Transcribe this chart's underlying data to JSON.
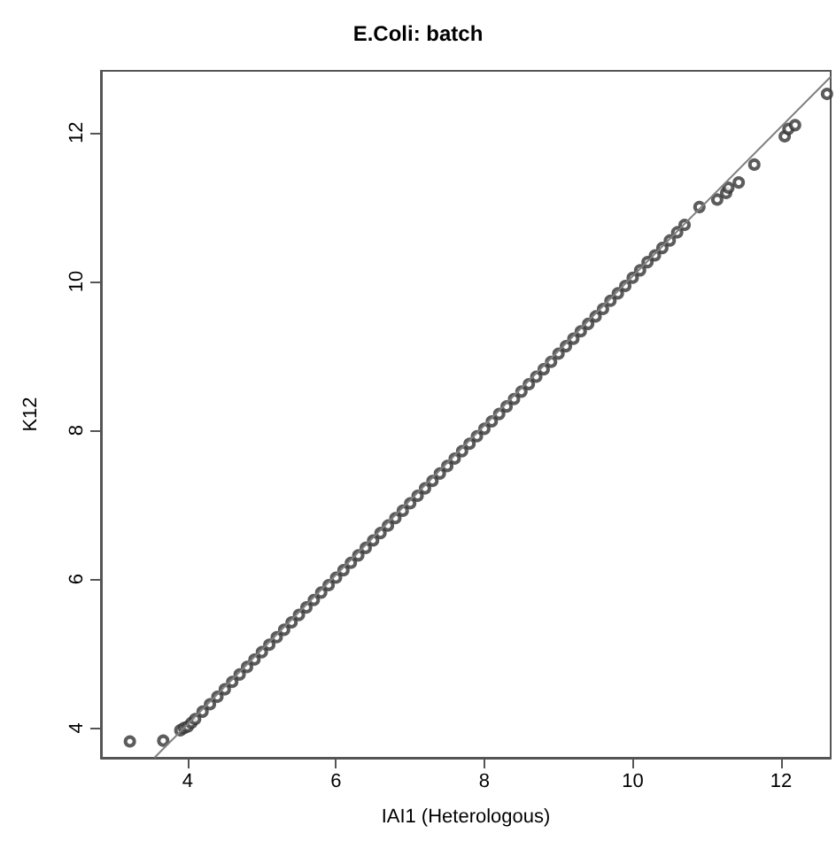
{
  "chart_data": {
    "type": "scatter",
    "title": "E.Coli: batch",
    "xlabel": "IAI1 (Heterologous)",
    "ylabel": "K12",
    "xlim": [
      2.83,
      12.67
    ],
    "ylim": [
      3.6,
      12.83
    ],
    "xticks": [
      4,
      6,
      8,
      10,
      12
    ],
    "yticks": [
      4,
      6,
      8,
      10,
      12
    ],
    "grid": false,
    "series": [
      {
        "marker": "circle",
        "color": "#333333",
        "x": [
          3.22,
          3.67,
          3.9,
          3.95,
          4.0,
          4.05,
          4.1,
          4.2,
          4.3,
          4.4,
          4.5,
          4.6,
          4.7,
          4.8,
          4.9,
          5.0,
          5.1,
          5.2,
          5.3,
          5.4,
          5.5,
          5.6,
          5.7,
          5.8,
          5.9,
          6.0,
          6.1,
          6.2,
          6.3,
          6.4,
          6.5,
          6.6,
          6.7,
          6.8,
          6.9,
          7.0,
          7.1,
          7.2,
          7.3,
          7.4,
          7.5,
          7.6,
          7.7,
          7.8,
          7.9,
          8.0,
          8.1,
          8.2,
          8.3,
          8.4,
          8.5,
          8.6,
          8.7,
          8.8,
          8.9,
          9.0,
          9.1,
          9.2,
          9.3,
          9.4,
          9.5,
          9.6,
          9.7,
          9.8,
          9.9,
          10.0,
          10.1,
          10.2,
          10.3,
          10.4,
          10.5,
          10.6,
          10.7,
          10.9,
          11.14,
          11.26,
          11.29,
          11.43,
          11.64,
          12.05,
          12.1,
          12.19,
          12.62
        ],
        "values": [
          3.82,
          3.83,
          3.97,
          4.0,
          4.02,
          4.07,
          4.12,
          4.22,
          4.32,
          4.42,
          4.52,
          4.62,
          4.72,
          4.82,
          4.92,
          5.02,
          5.12,
          5.22,
          5.32,
          5.42,
          5.52,
          5.62,
          5.72,
          5.82,
          5.92,
          6.02,
          6.12,
          6.22,
          6.32,
          6.42,
          6.52,
          6.62,
          6.72,
          6.82,
          6.92,
          7.02,
          7.12,
          7.22,
          7.32,
          7.42,
          7.52,
          7.62,
          7.72,
          7.82,
          7.92,
          8.02,
          8.12,
          8.22,
          8.32,
          8.42,
          8.52,
          8.62,
          8.72,
          8.82,
          8.92,
          9.03,
          9.13,
          9.23,
          9.33,
          9.43,
          9.53,
          9.63,
          9.74,
          9.84,
          9.94,
          10.05,
          10.15,
          10.26,
          10.35,
          10.45,
          10.55,
          10.66,
          10.76,
          11.0,
          11.1,
          11.19,
          11.26,
          11.33,
          11.57,
          11.95,
          12.05,
          12.1,
          12.52
        ]
      },
      {
        "type": "line",
        "marker": "none",
        "color": "#808080",
        "x": [
          3.55,
          12.67
        ],
        "values": [
          3.6,
          12.75
        ]
      }
    ]
  }
}
